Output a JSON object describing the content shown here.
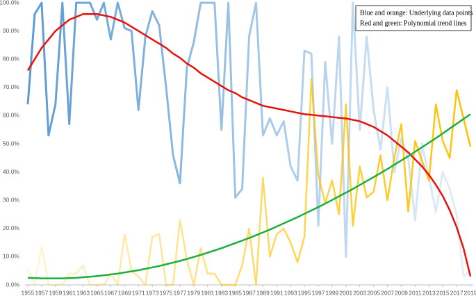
{
  "chart_data": {
    "type": "line",
    "annotations": [
      "Blue and orange: Underlying data points",
      "Red and green: Polynomial trend lines"
    ],
    "x": [
      1955,
      1956,
      1957,
      1958,
      1959,
      1960,
      1961,
      1962,
      1963,
      1964,
      1965,
      1966,
      1967,
      1968,
      1969,
      1970,
      1971,
      1972,
      1973,
      1974,
      1975,
      1976,
      1977,
      1978,
      1979,
      1980,
      1981,
      1982,
      1983,
      1984,
      1985,
      1986,
      1987,
      1988,
      1989,
      1990,
      1991,
      1992,
      1993,
      1994,
      1995,
      1996,
      1997,
      1998,
      1999,
      2000,
      2001,
      2002,
      2003,
      2004,
      2005,
      2006,
      2007,
      2008,
      2009,
      2010,
      2011,
      2012,
      2013,
      2014,
      2015,
      2016,
      2017,
      2018,
      2019
    ],
    "xlim": [
      1955,
      2019
    ],
    "xticks": [
      1955,
      1957,
      1959,
      1961,
      1963,
      1965,
      1967,
      1969,
      1971,
      1973,
      1975,
      1977,
      1979,
      1981,
      1983,
      1985,
      1987,
      1989,
      1991,
      1993,
      1995,
      1997,
      1999,
      2001,
      2003,
      2005,
      2007,
      2009,
      2011,
      2013,
      2015,
      2017,
      2019
    ],
    "ylim": [
      0,
      100
    ],
    "yticks": [
      {
        "value": 0,
        "label": "0.0%"
      },
      {
        "value": 10,
        "label": "10.0%"
      },
      {
        "value": 20,
        "label": "20.0%"
      },
      {
        "value": 30,
        "label": "30.0%"
      },
      {
        "value": 40,
        "label": "40.0%"
      },
      {
        "value": 50,
        "label": "50.0%"
      },
      {
        "value": 60,
        "label": "60.0%"
      },
      {
        "value": 70,
        "label": "70.0%"
      },
      {
        "value": 80,
        "label": "80.0%"
      },
      {
        "value": 90,
        "label": "90.0%"
      },
      {
        "value": 100,
        "label": "100.0%"
      }
    ],
    "grid": false,
    "series": [
      {
        "color": "#5b9bd5",
        "width": 3,
        "opacity": [
          1,
          0.15
        ],
        "values": [
          64,
          96,
          100,
          53,
          64,
          100,
          57,
          100,
          100,
          100,
          94,
          100,
          87,
          100,
          91,
          90,
          62,
          88,
          97,
          92,
          70,
          46,
          36,
          77,
          86,
          100,
          100,
          100,
          55,
          100,
          31,
          34,
          88,
          100,
          53,
          59,
          53,
          58,
          42,
          37,
          83,
          82,
          21,
          79,
          50,
          88,
          10,
          100,
          55,
          88,
          62,
          48,
          70,
          40,
          52,
          45,
          23,
          50,
          38,
          26,
          40,
          34,
          25,
          3,
          5
        ]
      },
      {
        "color": "#ffc000",
        "width": 2.5,
        "opacity": [
          0.15,
          1
        ],
        "values": [
          6,
          0,
          14,
          0,
          0,
          0,
          4,
          4,
          7,
          0,
          0,
          0,
          4,
          0,
          18,
          5,
          3,
          0,
          17,
          18,
          0,
          0,
          23,
          9,
          0,
          13,
          4,
          4,
          0,
          0,
          0,
          7,
          20,
          0,
          38,
          10,
          18,
          20,
          15,
          8,
          17,
          73,
          39,
          29,
          37,
          25,
          64,
          21,
          42,
          31,
          33,
          46,
          30,
          45,
          57,
          26,
          51,
          44,
          37,
          64,
          51,
          45,
          69,
          59,
          49
        ]
      },
      {
        "color": "#e8120c",
        "width": 2.5,
        "opacity": [
          1,
          1
        ],
        "values": [
          76,
          80,
          84,
          87,
          90,
          92,
          94,
          95,
          96,
          96,
          96,
          95.5,
          95,
          94,
          93,
          91.5,
          90,
          88.5,
          87,
          85.5,
          84,
          82,
          80.5,
          78.5,
          77,
          75,
          73.5,
          72,
          70.5,
          69,
          68,
          66.5,
          65.5,
          64.5,
          63.5,
          63,
          62.5,
          62,
          61.5,
          61,
          60.5,
          60.3,
          60,
          59.8,
          59.5,
          59.2,
          59,
          58.5,
          58,
          57,
          56,
          54.5,
          53,
          51,
          49,
          47,
          44.5,
          42,
          39,
          35.5,
          31.5,
          26.5,
          20.5,
          13,
          3
        ]
      },
      {
        "color": "#1aaf3a",
        "width": 2.5,
        "opacity": [
          1,
          1
        ],
        "values": [
          2.5,
          2.4,
          2.3,
          2.3,
          2.3,
          2.3,
          2.4,
          2.5,
          2.7,
          2.9,
          3.1,
          3.4,
          3.7,
          4,
          4.4,
          4.8,
          5.2,
          5.7,
          6.2,
          6.7,
          7.3,
          7.9,
          8.5,
          9.2,
          9.9,
          10.6,
          11.4,
          12.2,
          13,
          13.9,
          14.8,
          15.7,
          16.6,
          17.6,
          18.6,
          19.6,
          20.7,
          21.8,
          22.9,
          24,
          25.2,
          26.4,
          27.6,
          28.8,
          30.1,
          31.4,
          32.7,
          34,
          35.4,
          36.8,
          38.2,
          39.6,
          41.1,
          42.6,
          44.1,
          45.6,
          47.2,
          48.8,
          50.4,
          52,
          53.7,
          55.4,
          57.1,
          58.8,
          60.5
        ]
      }
    ]
  }
}
